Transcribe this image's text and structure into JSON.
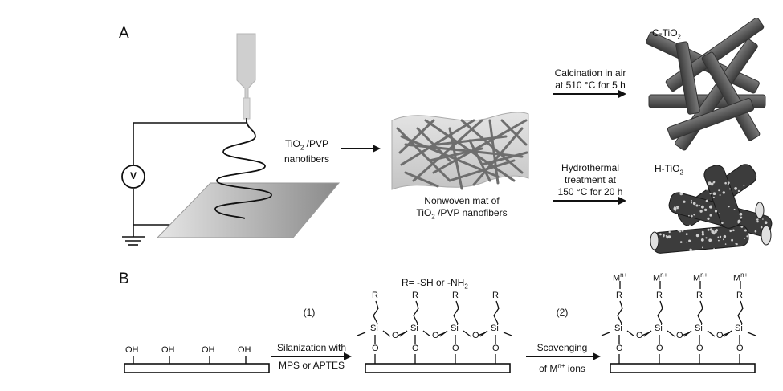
{
  "panels": {
    "a": "A",
    "b": "B"
  },
  "part_a": {
    "precursor": {
      "line1": "TiO",
      "sub": "2",
      "line1_rest": " /PVP",
      "line2": "nanofibers"
    },
    "mat": {
      "line1": "Nonwoven mat of",
      "line2": "TiO",
      "sub": "2",
      "line2_rest": " /PVP nanofibers"
    },
    "route_calcination": {
      "line1": "Calcination in air",
      "line2": "at 510 °C for 5 h"
    },
    "route_hydrothermal": {
      "line1": "Hydrothermal",
      "line2": "treatment at",
      "line3": "150 °C for 20 h"
    },
    "product_c": {
      "prefix": "C-TiO",
      "sub": "2"
    },
    "product_h": {
      "prefix": "H-TiO",
      "sub": "2"
    },
    "voltmeter": "V"
  },
  "part_b": {
    "r_definition": {
      "prefix": "R=  -SH  or  -NH",
      "sub": "2"
    },
    "step1": {
      "number": "(1)",
      "line1": "Silanization with",
      "line2": "MPS or APTES"
    },
    "step2": {
      "number": "(2)",
      "line1": "Scavenging",
      "line2_prefix": "of M",
      "line2_sup": "n+",
      "line2_suffix": " ions"
    },
    "oh_label": "OH",
    "r_label": "R",
    "si_label": "Si",
    "o_label": "O",
    "metal_label": {
      "prefix": "M",
      "sup": "n+"
    }
  }
}
